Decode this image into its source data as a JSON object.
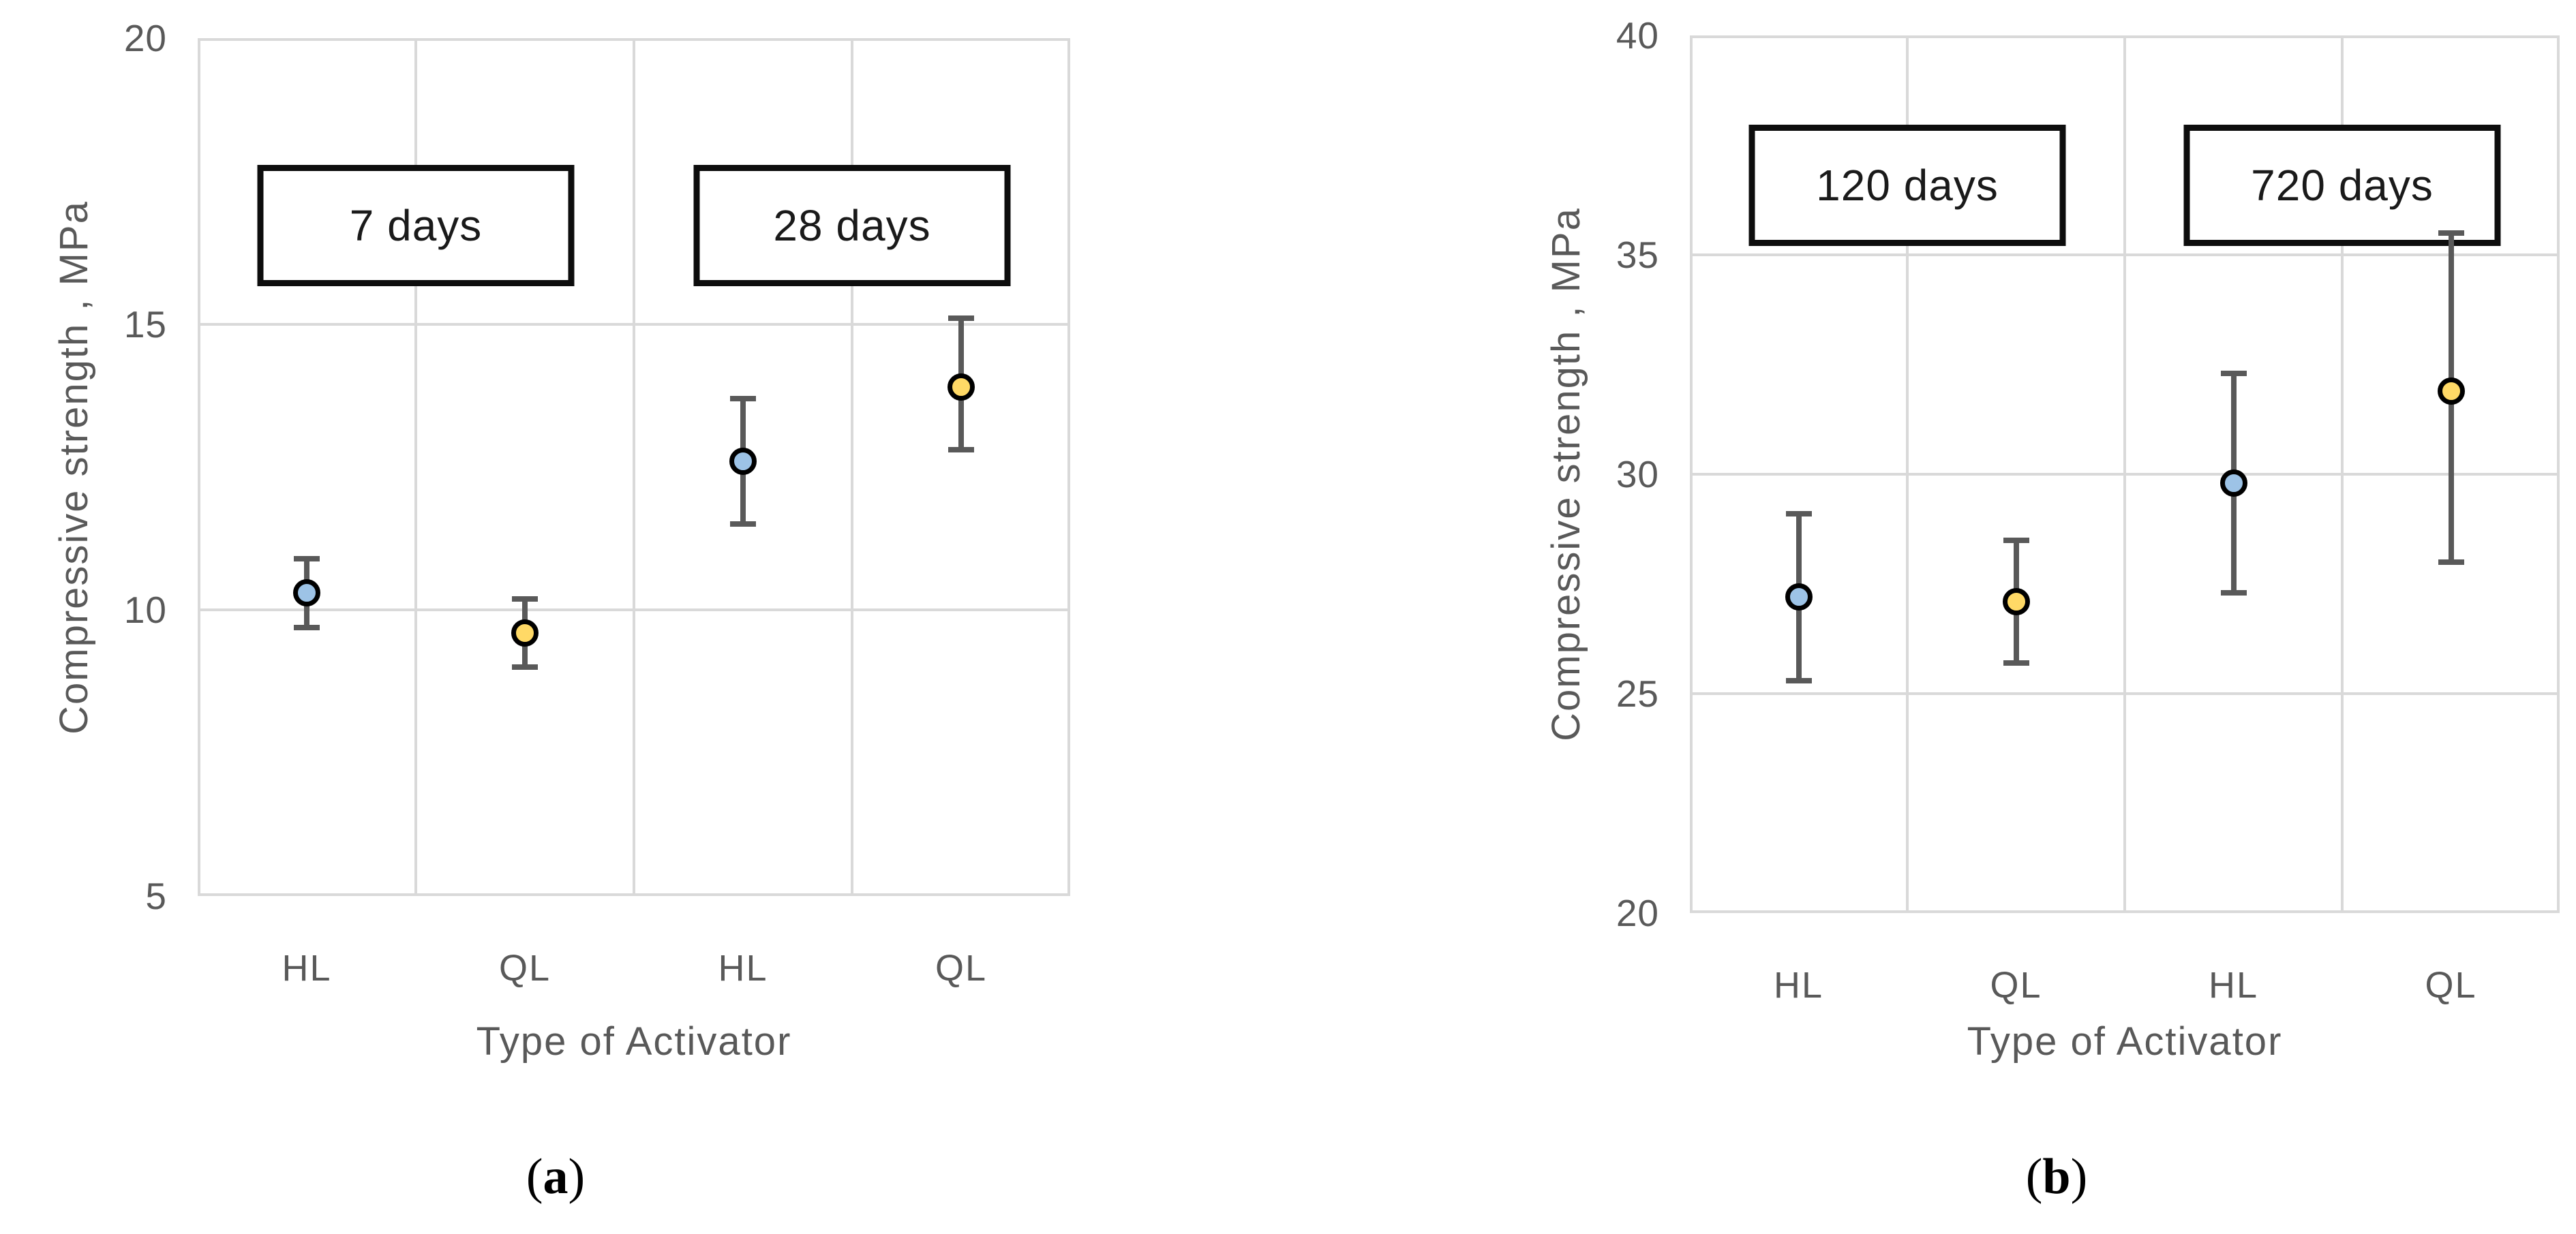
{
  "chart_data": [
    {
      "id": "a",
      "type": "scatter",
      "caption": {
        "pre": "(",
        "letter": "a",
        "post": ")"
      },
      "xlabel": "Type of Activator",
      "ylabel": "Compressive strength , MPa",
      "ylim": [
        5,
        20
      ],
      "yticks": [
        5,
        10,
        15,
        20
      ],
      "categories": [
        "HL",
        "QL",
        "HL",
        "QL"
      ],
      "grid": true,
      "legend": "none",
      "annotations": [
        {
          "label": "7 days",
          "between_categories": [
            0,
            1
          ]
        },
        {
          "label": "28 days",
          "between_categories": [
            2,
            3
          ]
        }
      ],
      "points": [
        {
          "category": "HL",
          "age": "7 days",
          "series": "HL",
          "mean": 10.3,
          "lo": 9.7,
          "hi": 10.9
        },
        {
          "category": "QL",
          "age": "7 days",
          "series": "QL",
          "mean": 9.6,
          "lo": 9.0,
          "hi": 10.2
        },
        {
          "category": "HL",
          "age": "28 days",
          "series": "HL",
          "mean": 12.6,
          "lo": 11.5,
          "hi": 13.7
        },
        {
          "category": "QL",
          "age": "28 days",
          "series": "QL",
          "mean": 13.9,
          "lo": 12.8,
          "hi": 15.1
        }
      ]
    },
    {
      "id": "b",
      "type": "scatter",
      "caption": {
        "pre": "(",
        "letter": "b",
        "post": ")"
      },
      "xlabel": "Type of Activator",
      "ylabel": "Compressive strength , MPa",
      "ylim": [
        20,
        40
      ],
      "yticks": [
        20,
        25,
        30,
        35,
        40
      ],
      "categories": [
        "HL",
        "QL",
        "HL",
        "QL"
      ],
      "grid": true,
      "legend": "none",
      "annotations": [
        {
          "label": "120 days",
          "between_categories": [
            0,
            1
          ]
        },
        {
          "label": "720 days",
          "between_categories": [
            2,
            3
          ]
        }
      ],
      "points": [
        {
          "category": "HL",
          "age": "120 days",
          "series": "HL",
          "mean": 27.2,
          "lo": 25.3,
          "hi": 29.1
        },
        {
          "category": "QL",
          "age": "120 days",
          "series": "QL",
          "mean": 27.1,
          "lo": 25.7,
          "hi": 28.5
        },
        {
          "category": "HL",
          "age": "720 days",
          "series": "HL",
          "mean": 29.8,
          "lo": 27.3,
          "hi": 32.3
        },
        {
          "category": "QL",
          "age": "720 days",
          "series": "QL",
          "mean": 31.9,
          "lo": 28.0,
          "hi": 35.5
        }
      ]
    }
  ],
  "colors": {
    "series": {
      "HL": "#9DC3E6",
      "QL": "#FFD966"
    },
    "marker_outline": "#000000",
    "error_bar": "#595959",
    "gridline": "#D9D9D9",
    "axis_text": "#595959",
    "annotation_border": "#0D0D0D",
    "annotation_text": "#1A1A1A",
    "caption_text": "#000000",
    "background": "#FFFFFF"
  }
}
